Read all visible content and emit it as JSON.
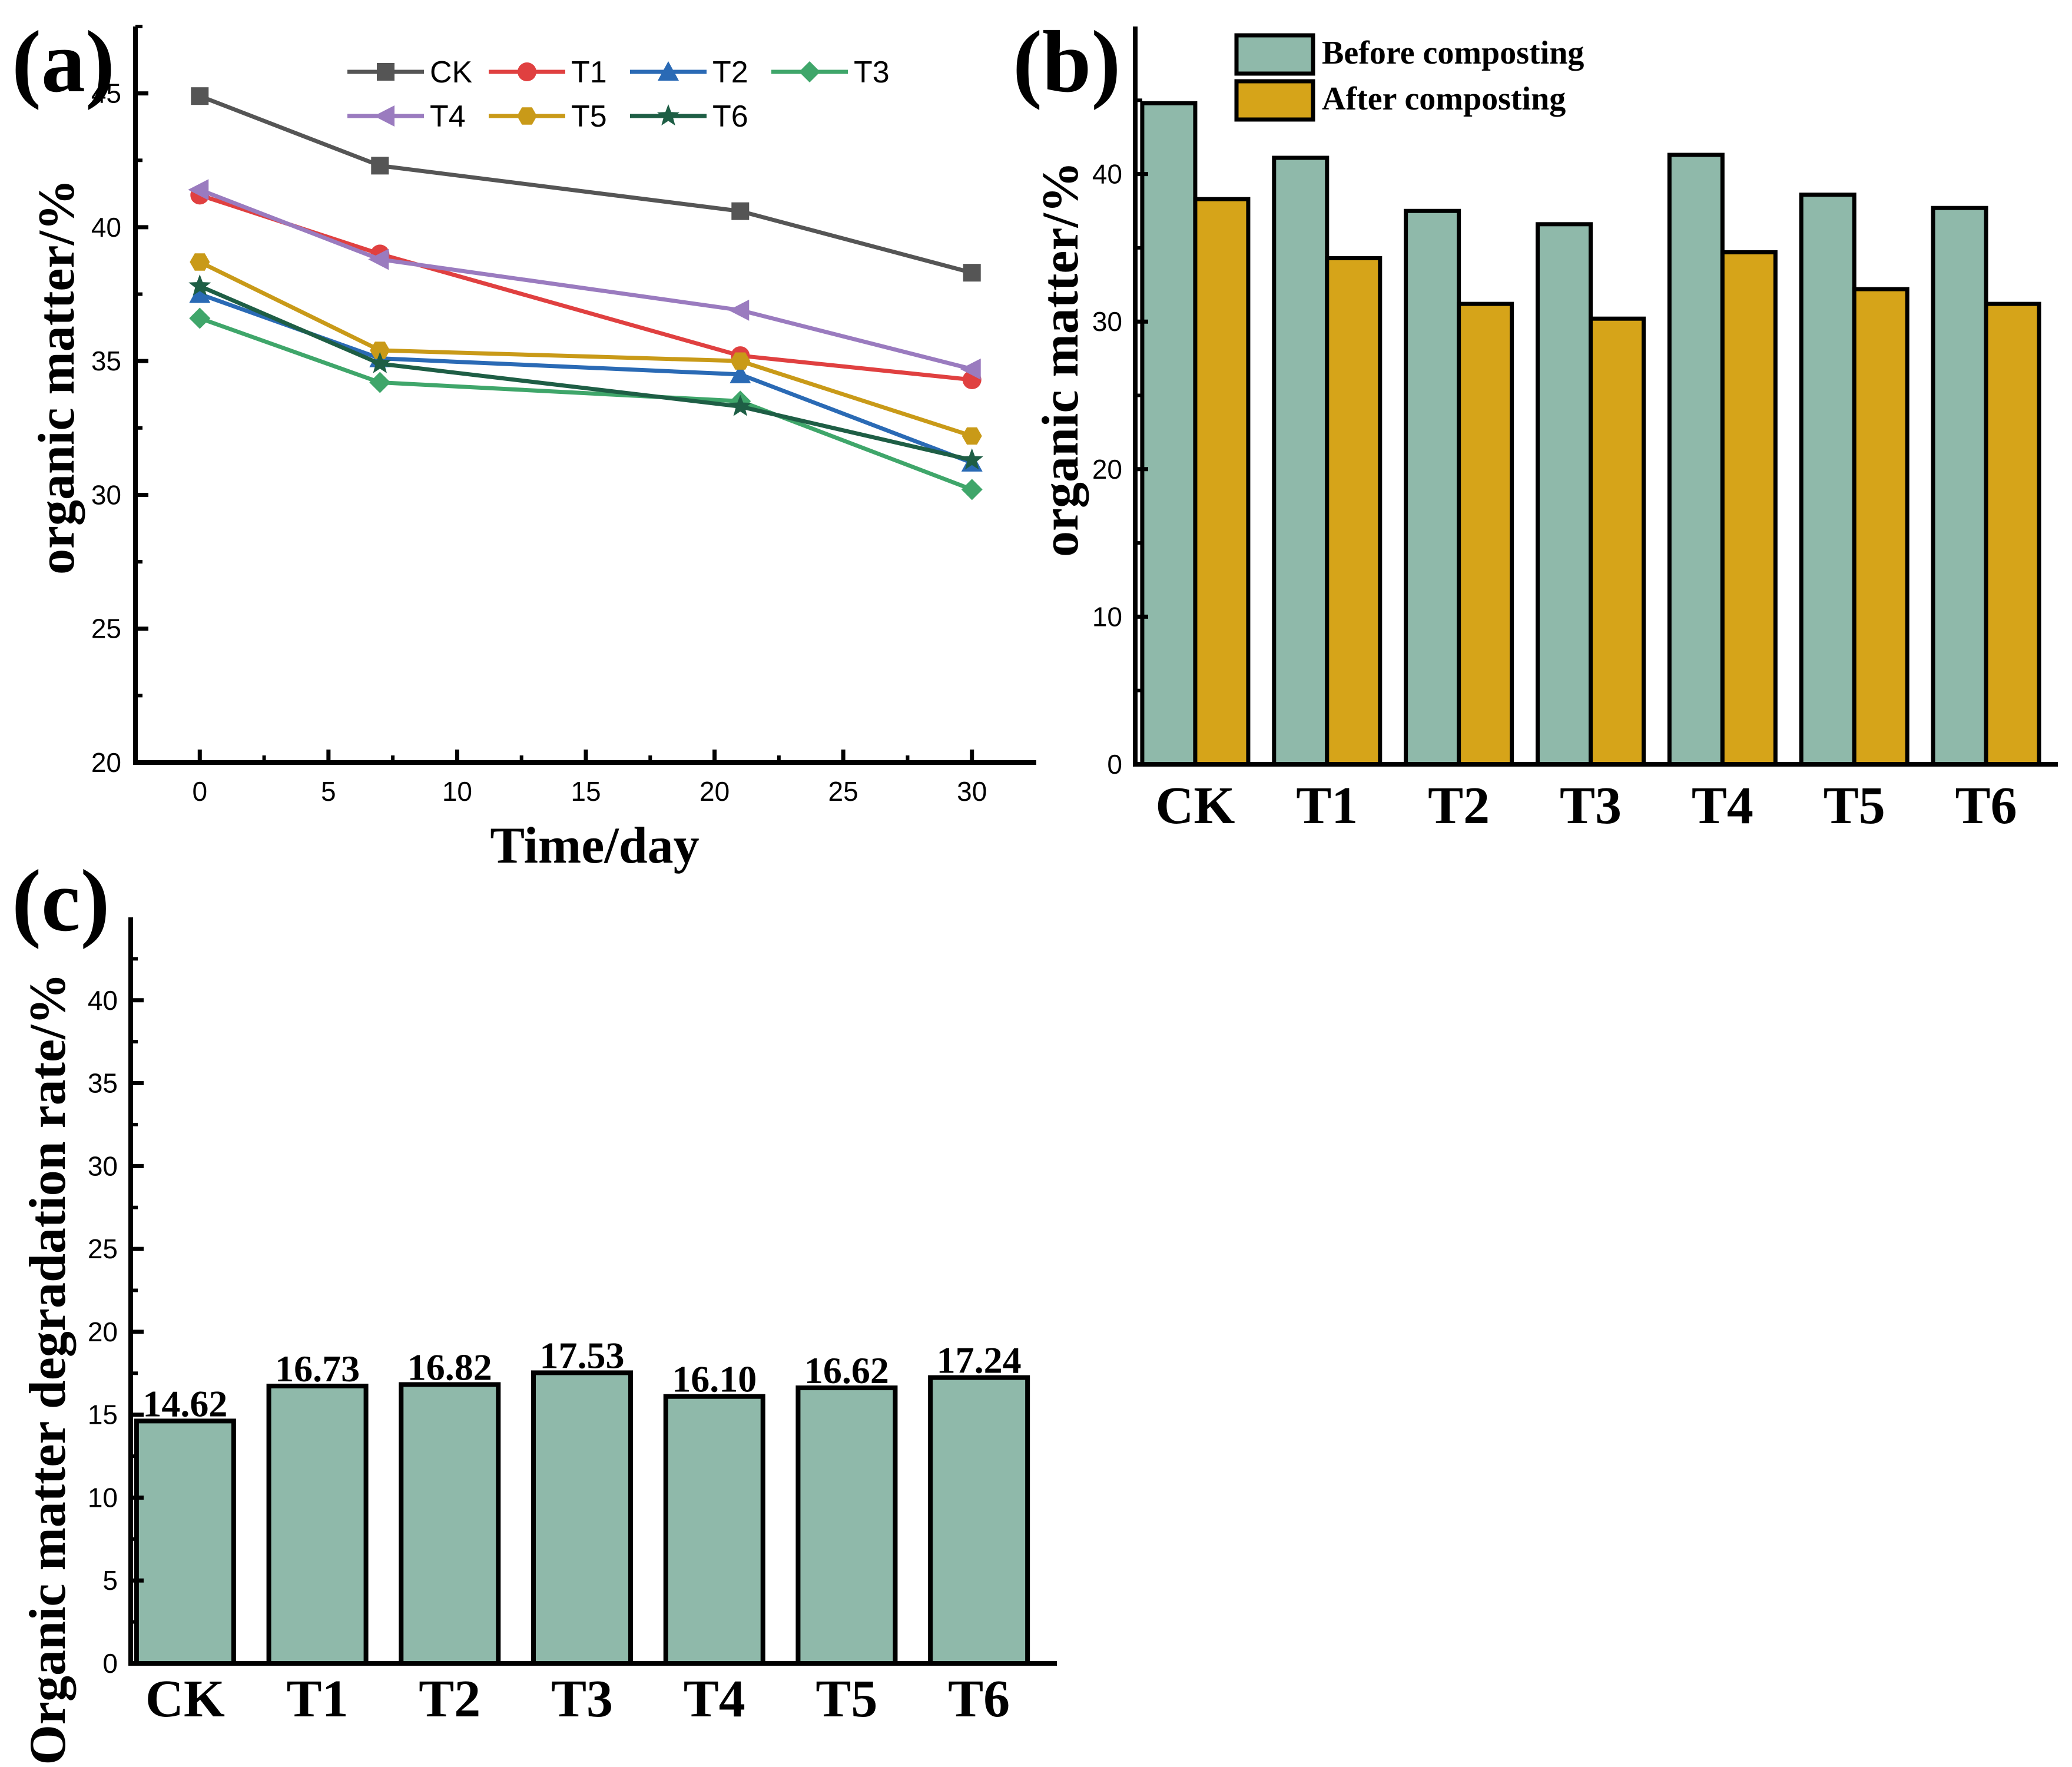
{
  "panels": {
    "a": "(a)",
    "b": "(b)",
    "c": "(c)"
  },
  "colors": {
    "before": "#8fb9aa",
    "after": "#d6a419",
    "CK": "#555555",
    "T1": "#e04040",
    "T2": "#2a6ab5",
    "T3": "#3fa66a",
    "T4": "#9a7bbf",
    "T5": "#c99a18",
    "T6": "#1e5e45"
  },
  "chart_data": [
    {
      "id": "a",
      "type": "line",
      "title": "",
      "xlabel": "Time/day",
      "ylabel": "organic matter/%",
      "xlim": [
        -2.5,
        32.5
      ],
      "ylim": [
        20,
        47.5
      ],
      "xticks": [
        0,
        5,
        10,
        15,
        20,
        25,
        30
      ],
      "yticks": [
        20,
        25,
        30,
        35,
        40,
        45
      ],
      "x": [
        0,
        7,
        21,
        30
      ],
      "series": [
        {
          "name": "CK",
          "marker": "square",
          "values": [
            44.9,
            42.3,
            40.6,
            38.3
          ]
        },
        {
          "name": "T1",
          "marker": "circle",
          "values": [
            41.2,
            39.0,
            35.2,
            34.3
          ]
        },
        {
          "name": "T2",
          "marker": "triangle-up",
          "values": [
            37.5,
            35.1,
            34.5,
            31.2
          ]
        },
        {
          "name": "T3",
          "marker": "diamond",
          "values": [
            36.6,
            34.2,
            33.5,
            30.2
          ]
        },
        {
          "name": "T4",
          "marker": "triangle-left",
          "values": [
            41.4,
            38.8,
            36.9,
            34.7
          ]
        },
        {
          "name": "T5",
          "marker": "hexagon",
          "values": [
            38.7,
            35.4,
            35.0,
            32.2
          ]
        },
        {
          "name": "T6",
          "marker": "star",
          "values": [
            37.8,
            34.9,
            33.3,
            31.3
          ]
        }
      ],
      "legend_position": "top"
    },
    {
      "id": "b",
      "type": "bar",
      "title": "",
      "xlabel": "",
      "ylabel": "organic matter/%",
      "categories": [
        "CK",
        "T1",
        "T2",
        "T3",
        "T4",
        "T5",
        "T6"
      ],
      "ylim": [
        0,
        50
      ],
      "yticks": [
        0,
        10,
        20,
        30,
        40
      ],
      "series": [
        {
          "name": "Before composting",
          "values": [
            44.8,
            41.1,
            37.5,
            36.6,
            41.3,
            38.6,
            37.7
          ]
        },
        {
          "name": "After composting",
          "values": [
            38.3,
            34.3,
            31.2,
            30.2,
            34.7,
            32.2,
            31.2
          ]
        }
      ],
      "legend_position": "top"
    },
    {
      "id": "c",
      "type": "bar",
      "title": "",
      "xlabel": "",
      "ylabel": "Organic matter degradation rate/%",
      "categories": [
        "CK",
        "T1",
        "T2",
        "T3",
        "T4",
        "T5",
        "T6"
      ],
      "ylim": [
        0,
        45
      ],
      "yticks": [
        0,
        5,
        10,
        15,
        20,
        25,
        30,
        35,
        40
      ],
      "values": [
        14.62,
        16.73,
        16.82,
        17.53,
        16.1,
        16.62,
        17.24
      ],
      "labels": [
        "14.62",
        "16.73",
        "16.82",
        "17.53",
        "16.10",
        "16.62",
        "17.24"
      ]
    }
  ]
}
